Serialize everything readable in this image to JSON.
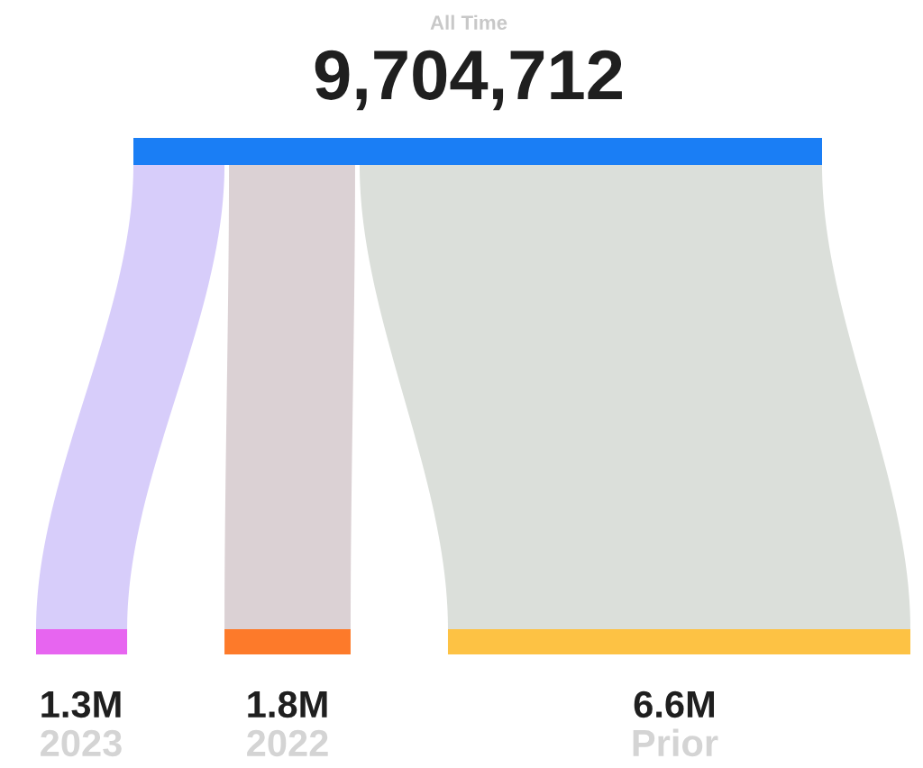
{
  "chart_data": {
    "type": "other",
    "subtitle": "All Time",
    "title": "9,704,712",
    "categories": [
      "2023",
      "2022",
      "Prior"
    ],
    "values": [
      1.3,
      1.8,
      6.6
    ],
    "value_labels": [
      "1.3M",
      "1.8M",
      "6.6M"
    ],
    "colors": [
      "#e765f0",
      "#fd7a2a",
      "#fdc244"
    ]
  }
}
